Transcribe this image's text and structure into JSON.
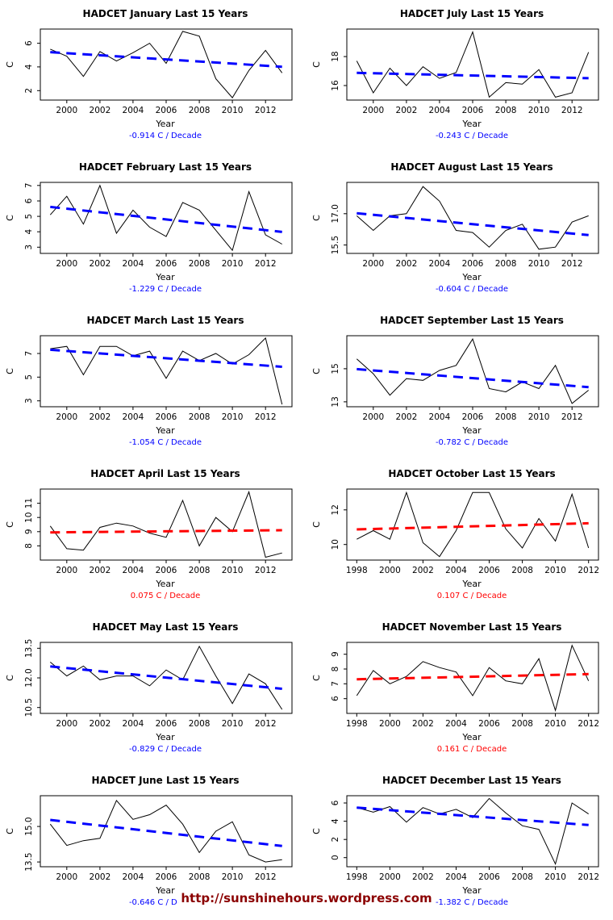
{
  "page": {
    "watermark": "http://sunshinehours.wordpress.com"
  },
  "colors": {
    "data_line": "#000000",
    "negative_trend": "#0000ff",
    "positive_trend": "#ff0000",
    "axis": "#000000"
  },
  "layout": {
    "columns": 2,
    "order": [
      0,
      6,
      1,
      7,
      2,
      8,
      3,
      9,
      4,
      10,
      5,
      11
    ]
  },
  "chart_data": [
    {
      "id": "january",
      "type": "line",
      "title": "HADCET January Last 15 Years",
      "xlabel": "Year",
      "ylabel": "C",
      "x": [
        1999,
        2000,
        2001,
        2002,
        2003,
        2004,
        2005,
        2006,
        2007,
        2008,
        2009,
        2010,
        2011,
        2012,
        2013
      ],
      "values": [
        5.5,
        4.9,
        3.2,
        5.3,
        4.5,
        5.2,
        6.0,
        4.3,
        7.0,
        6.6,
        3.0,
        1.4,
        3.7,
        5.4,
        3.5
      ],
      "xlim": [
        1998.4,
        2013.6
      ],
      "ylim": [
        1.2,
        7.2
      ],
      "xticks": [
        2000,
        2002,
        2004,
        2006,
        2008,
        2010,
        2012
      ],
      "yticks": [
        "2",
        "4",
        "6"
      ],
      "trend_label": "-0.914 C / Decade",
      "trend_color": "#0000ff"
    },
    {
      "id": "february",
      "type": "line",
      "title": "HADCET February Last 15 Years",
      "xlabel": "Year",
      "ylabel": "C",
      "x": [
        1999,
        2000,
        2001,
        2002,
        2003,
        2004,
        2005,
        2006,
        2007,
        2008,
        2009,
        2010,
        2011,
        2012,
        2013
      ],
      "values": [
        5.1,
        6.3,
        4.5,
        7.0,
        3.9,
        5.4,
        4.3,
        3.7,
        5.9,
        5.4,
        4.1,
        2.8,
        6.6,
        3.8,
        3.2
      ],
      "xlim": [
        1998.4,
        2013.6
      ],
      "ylim": [
        2.6,
        7.2
      ],
      "xticks": [
        2000,
        2002,
        2004,
        2006,
        2008,
        2010,
        2012
      ],
      "yticks": [
        "3",
        "4",
        "5",
        "6",
        "7"
      ],
      "trend_label": "-1.229 C / Decade",
      "trend_color": "#0000ff"
    },
    {
      "id": "march",
      "type": "line",
      "title": "HADCET March Last 15 Years",
      "xlabel": "Year",
      "ylabel": "C",
      "x": [
        1999,
        2000,
        2001,
        2002,
        2003,
        2004,
        2005,
        2006,
        2007,
        2008,
        2009,
        2010,
        2011,
        2012,
        2013
      ],
      "values": [
        7.4,
        7.6,
        5.2,
        7.6,
        7.6,
        6.8,
        7.2,
        4.9,
        7.2,
        6.4,
        7.0,
        6.1,
        6.9,
        8.3,
        2.7
      ],
      "xlim": [
        1998.4,
        2013.6
      ],
      "ylim": [
        2.5,
        8.5
      ],
      "xticks": [
        2000,
        2002,
        2004,
        2006,
        2008,
        2010,
        2012
      ],
      "yticks": [
        "3",
        "5",
        "7"
      ],
      "trend_label": "-1.054 C / Decade",
      "trend_color": "#0000ff"
    },
    {
      "id": "april",
      "type": "line",
      "title": "HADCET April Last 15 Years",
      "xlabel": "Year",
      "ylabel": "C",
      "x": [
        1999,
        2000,
        2001,
        2002,
        2003,
        2004,
        2005,
        2006,
        2007,
        2008,
        2009,
        2010,
        2011,
        2012,
        2013
      ],
      "values": [
        9.4,
        7.8,
        7.7,
        9.3,
        9.6,
        9.4,
        8.9,
        8.6,
        11.2,
        8.0,
        10.0,
        9.0,
        11.8,
        7.2,
        7.5
      ],
      "xlim": [
        1998.4,
        2013.6
      ],
      "ylim": [
        7.0,
        12.0
      ],
      "xticks": [
        2000,
        2002,
        2004,
        2006,
        2008,
        2010,
        2012
      ],
      "yticks": [
        "8",
        "9",
        "10",
        "11"
      ],
      "trend_label": "0.075 C / Decade",
      "trend_color": "#ff0000"
    },
    {
      "id": "may",
      "type": "line",
      "title": "HADCET May Last 15 Years",
      "xlabel": "Year",
      "ylabel": "C",
      "x": [
        1999,
        2000,
        2001,
        2002,
        2003,
        2004,
        2005,
        2006,
        2007,
        2008,
        2009,
        2010,
        2011,
        2012,
        2013
      ],
      "values": [
        12.8,
        12.1,
        12.6,
        11.9,
        12.1,
        12.1,
        11.6,
        12.4,
        11.9,
        13.6,
        12.1,
        10.7,
        12.2,
        11.7,
        10.4
      ],
      "xlim": [
        1998.4,
        2013.6
      ],
      "ylim": [
        10.2,
        13.8
      ],
      "xticks": [
        2000,
        2002,
        2004,
        2006,
        2008,
        2010,
        2012
      ],
      "yticks": [
        "10.5",
        "12.0",
        "13.5"
      ],
      "trend_label": "-0.829 C / Decade",
      "trend_color": "#0000ff"
    },
    {
      "id": "june",
      "type": "line",
      "title": "HADCET June Last 15 Years",
      "xlabel": "Year",
      "ylabel": "C",
      "x": [
        1999,
        2000,
        2001,
        2002,
        2003,
        2004,
        2005,
        2006,
        2007,
        2008,
        2009,
        2010,
        2011,
        2012,
        2013
      ],
      "values": [
        15.1,
        14.2,
        14.4,
        14.5,
        16.1,
        15.3,
        15.5,
        15.9,
        15.1,
        13.9,
        14.8,
        15.2,
        13.8,
        13.5,
        13.6
      ],
      "xlim": [
        1998.4,
        2013.6
      ],
      "ylim": [
        13.3,
        16.3
      ],
      "xticks": [
        2000,
        2002,
        2004,
        2006,
        2008,
        2010,
        2012
      ],
      "yticks": [
        "13.5",
        "15.0"
      ],
      "trend_label": "-0.646 C / Decade",
      "trend_color": "#0000ff"
    },
    {
      "id": "july",
      "type": "line",
      "title": "HADCET July Last 15 Years",
      "xlabel": "Year",
      "ylabel": "C",
      "x": [
        1999,
        2000,
        2001,
        2002,
        2003,
        2004,
        2005,
        2006,
        2007,
        2008,
        2009,
        2010,
        2011,
        2012,
        2013
      ],
      "values": [
        17.7,
        15.5,
        17.2,
        16.0,
        17.3,
        16.5,
        16.9,
        19.7,
        15.2,
        16.2,
        16.1,
        17.1,
        15.2,
        15.5,
        18.3
      ],
      "xlim": [
        1998.4,
        2013.6
      ],
      "ylim": [
        15.0,
        19.9
      ],
      "xticks": [
        2000,
        2002,
        2004,
        2006,
        2008,
        2010,
        2012
      ],
      "yticks": [
        "16",
        "18"
      ],
      "trend_label": "-0.243 C / Decade",
      "trend_color": "#0000ff"
    },
    {
      "id": "august",
      "type": "line",
      "title": "HADCET August Last 15 Years",
      "xlabel": "Year",
      "ylabel": "C",
      "x": [
        1999,
        2000,
        2001,
        2002,
        2003,
        2004,
        2005,
        2006,
        2007,
        2008,
        2009,
        2010,
        2011,
        2012,
        2013
      ],
      "values": [
        16.9,
        16.2,
        16.9,
        17.0,
        18.3,
        17.6,
        16.2,
        16.1,
        15.4,
        16.2,
        16.5,
        15.3,
        15.4,
        16.6,
        16.9
      ],
      "xlim": [
        1998.4,
        2013.6
      ],
      "ylim": [
        15.1,
        18.5
      ],
      "xticks": [
        2000,
        2002,
        2004,
        2006,
        2008,
        2010,
        2012
      ],
      "yticks": [
        "15.5",
        "17.0"
      ],
      "trend_label": "-0.604 C / Decade",
      "trend_color": "#0000ff"
    },
    {
      "id": "september",
      "type": "line",
      "title": "HADCET September Last 15 Years",
      "xlabel": "Year",
      "ylabel": "C",
      "x": [
        1999,
        2000,
        2001,
        2002,
        2003,
        2004,
        2005,
        2006,
        2007,
        2008,
        2009,
        2010,
        2011,
        2012,
        2013
      ],
      "values": [
        15.6,
        14.7,
        13.4,
        14.4,
        14.3,
        14.9,
        15.2,
        16.8,
        13.8,
        13.6,
        14.2,
        13.8,
        15.2,
        12.9,
        13.7
      ],
      "xlim": [
        1998.4,
        2013.6
      ],
      "ylim": [
        12.7,
        17.0
      ],
      "xticks": [
        2000,
        2002,
        2004,
        2006,
        2008,
        2010,
        2012
      ],
      "yticks": [
        "13",
        "15"
      ],
      "trend_label": "-0.782 C / Decade",
      "trend_color": "#0000ff"
    },
    {
      "id": "october",
      "type": "line",
      "title": "HADCET October Last 15 Years",
      "xlabel": "Year",
      "ylabel": "C",
      "x": [
        1998,
        1999,
        2000,
        2001,
        2002,
        2003,
        2004,
        2005,
        2006,
        2007,
        2008,
        2009,
        2010,
        2011,
        2012
      ],
      "values": [
        10.3,
        10.8,
        10.3,
        13.0,
        10.1,
        9.3,
        10.8,
        13.0,
        13.0,
        10.9,
        9.8,
        11.5,
        10.2,
        12.9,
        9.8
      ],
      "xlim": [
        1997.4,
        2012.6
      ],
      "ylim": [
        9.1,
        13.2
      ],
      "xticks": [
        1998,
        2000,
        2002,
        2004,
        2006,
        2008,
        2010,
        2012
      ],
      "yticks": [
        "10",
        "12"
      ],
      "trend_label": "0.107 C / Decade",
      "trend_color": "#ff0000"
    },
    {
      "id": "november",
      "type": "line",
      "title": "HADCET November Last 15 Years",
      "xlabel": "Year",
      "ylabel": "C",
      "x": [
        1998,
        1999,
        2000,
        2001,
        2002,
        2003,
        2004,
        2005,
        2006,
        2007,
        2008,
        2009,
        2010,
        2011,
        2012
      ],
      "values": [
        6.2,
        7.9,
        7.0,
        7.5,
        8.5,
        8.1,
        7.8,
        6.2,
        8.1,
        7.2,
        7.0,
        8.7,
        5.2,
        9.6,
        7.2
      ],
      "xlim": [
        1997.4,
        2012.6
      ],
      "ylim": [
        5.0,
        9.8
      ],
      "xticks": [
        1998,
        2000,
        2002,
        2004,
        2006,
        2008,
        2010,
        2012
      ],
      "yticks": [
        "6",
        "7",
        "8",
        "9"
      ],
      "trend_label": "0.161 C / Decade",
      "trend_color": "#ff0000"
    },
    {
      "id": "december",
      "type": "line",
      "title": "HADCET December Last 15 Years",
      "xlabel": "Year",
      "ylabel": "C",
      "x": [
        1998,
        1999,
        2000,
        2001,
        2002,
        2003,
        2004,
        2005,
        2006,
        2007,
        2008,
        2009,
        2010,
        2011,
        2012
      ],
      "values": [
        5.5,
        5.0,
        5.6,
        3.9,
        5.5,
        4.8,
        5.3,
        4.4,
        6.5,
        4.9,
        3.5,
        3.1,
        -0.7,
        6.0,
        4.8
      ],
      "xlim": [
        1997.4,
        2012.6
      ],
      "ylim": [
        -1.0,
        6.8
      ],
      "xticks": [
        1998,
        2000,
        2002,
        2004,
        2006,
        2008,
        2010,
        2012
      ],
      "yticks": [
        "0",
        "2",
        "4",
        "6"
      ],
      "trend_label": "-1.382 C / Decade",
      "trend_color": "#0000ff"
    }
  ]
}
